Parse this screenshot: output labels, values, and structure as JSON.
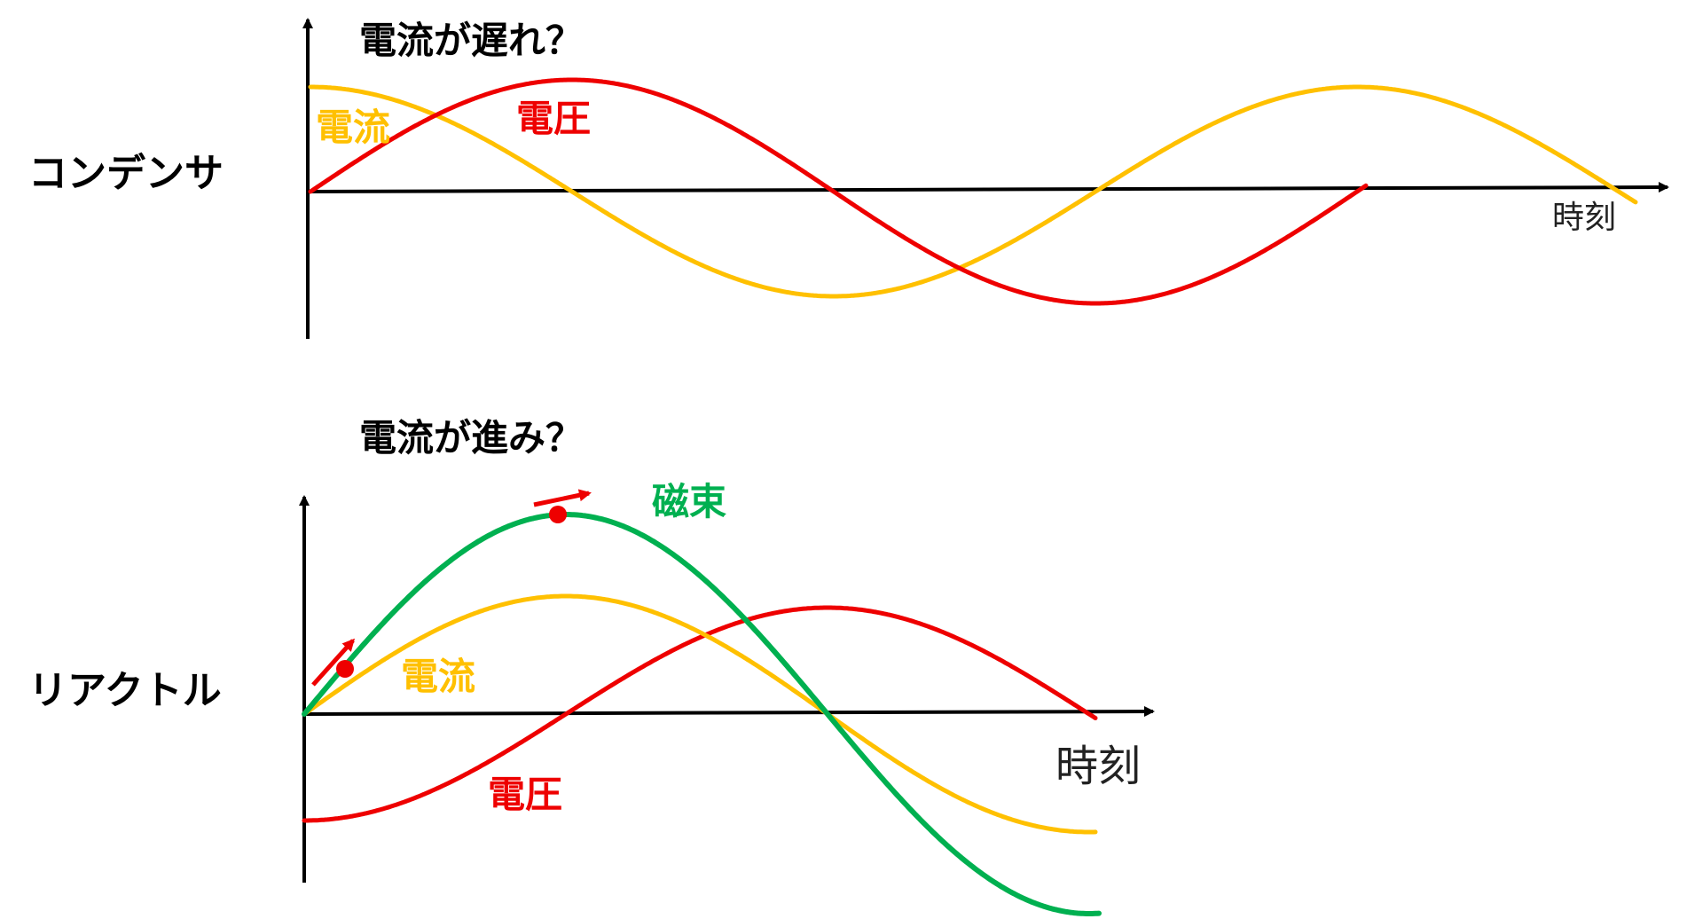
{
  "top_panel": {
    "row_label": "コンデンサ",
    "question": "電流が遅れ？",
    "current_label": "電流",
    "voltage_label": "電圧",
    "axis_label": "時刻"
  },
  "bottom_panel": {
    "row_label": "リアクトル",
    "question": "電流が進み？",
    "flux_label": "磁束",
    "current_label": "電流",
    "voltage_label": "電圧",
    "axis_label": "時刻"
  },
  "colors": {
    "voltage": "#ee0000",
    "current": "#ffc000",
    "flux": "#00b050",
    "axis": "#000000",
    "marker": "#ee0000"
  }
}
